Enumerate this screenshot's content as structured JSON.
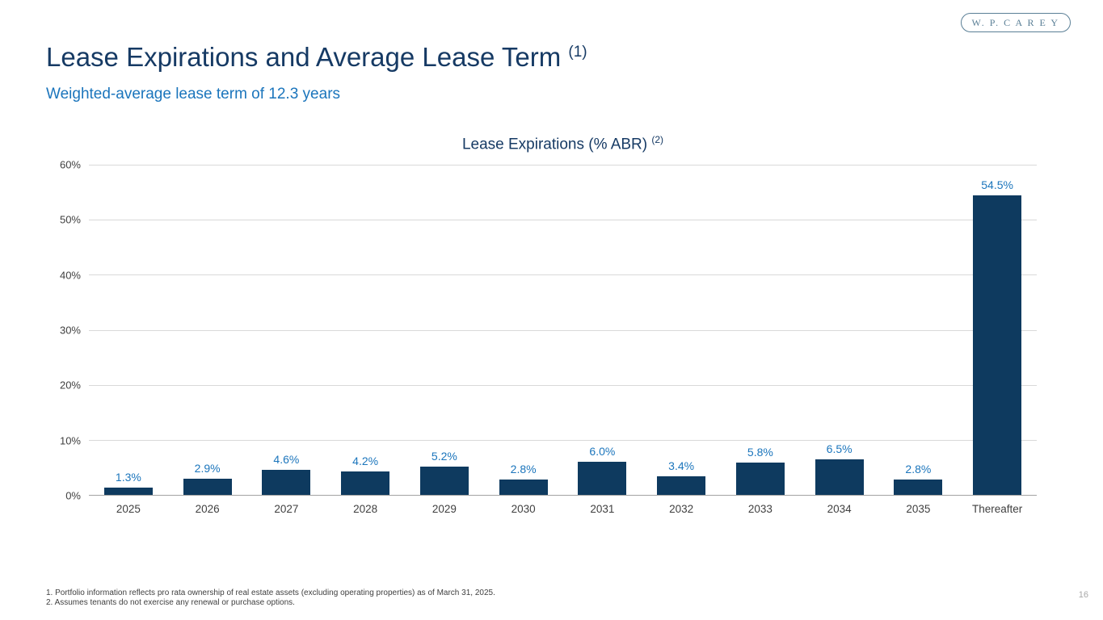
{
  "header": {
    "logo_text": "W. P. C A R E Y",
    "title": "Lease Expirations and Average Lease Term",
    "title_footnote_ref": "(1)",
    "subtitle": "Weighted-average lease term of 12.3 years"
  },
  "chart_data": {
    "type": "bar",
    "title": "Lease Expirations (% ABR)",
    "title_footnote_ref": "(2)",
    "categories": [
      "2025",
      "2026",
      "2027",
      "2028",
      "2029",
      "2030",
      "2031",
      "2032",
      "2033",
      "2034",
      "2035",
      "Thereafter"
    ],
    "values": [
      1.3,
      2.9,
      4.6,
      4.2,
      5.2,
      2.8,
      6.0,
      3.4,
      5.8,
      6.5,
      2.8,
      54.5
    ],
    "value_labels": [
      "1.3%",
      "2.9%",
      "4.6%",
      "4.2%",
      "5.2%",
      "2.8%",
      "6.0%",
      "3.4%",
      "5.8%",
      "6.5%",
      "2.8%",
      "54.5%"
    ],
    "xlabel": "",
    "ylabel": "",
    "ylim": [
      0,
      60
    ],
    "y_ticks": [
      "60%",
      "50%",
      "40%",
      "30%",
      "20%",
      "10%",
      "0%"
    ],
    "grid": true,
    "legend": false
  },
  "footnotes": [
    "1. Portfolio information reflects pro rata ownership of real estate assets (excluding operating properties) as of March 31, 2025.",
    "2. Assumes tenants do not exercise any renewal or purchase options."
  ],
  "footer": {
    "page_number": "16"
  },
  "colors": {
    "title": "#163a64",
    "subtitle": "#1b75bc",
    "bar": "#0e3a5f",
    "data_label": "#1b75bc",
    "gridline": "#d9d9d9",
    "axis_line": "#a3a3a3",
    "tick_label": "#3f3f3f",
    "footnote": "#404040",
    "page_number": "#a8a8a8",
    "logo": "#5a7f96"
  }
}
